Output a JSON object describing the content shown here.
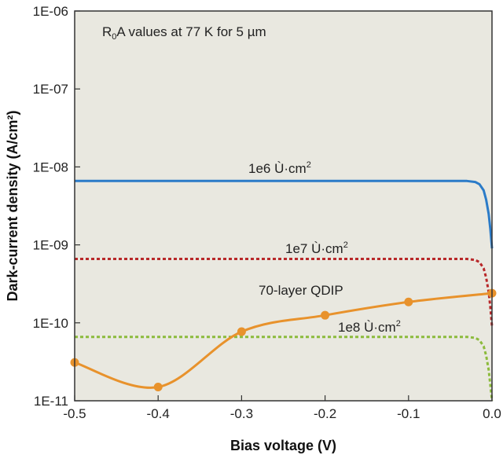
{
  "chart_data": {
    "type": "line",
    "title": "",
    "inset_label": {
      "prefix": "R",
      "subscript": "0",
      "suffix": "A values at 77 K for 5 µm"
    },
    "xlabel": "Bias voltage (V)",
    "ylabel": "Dark-current density (A/cm²)",
    "xlim": [
      -0.5,
      0.0
    ],
    "ylim": [
      1e-11,
      1e-06
    ],
    "yscale": "log",
    "grid": false,
    "x_ticks": [
      -0.5,
      -0.4,
      -0.3,
      -0.2,
      -0.1,
      0.0
    ],
    "x_tick_labels": [
      "-0.5",
      "-0.4",
      "-0.3",
      "-0.2",
      "-0.1",
      "0.0"
    ],
    "y_ticks": [
      1e-06,
      1e-07,
      1e-08,
      1e-09,
      1e-10,
      1e-11
    ],
    "y_tick_labels": [
      "1E-06",
      "1E-07",
      "1E-08",
      "1E-09",
      "1E-10",
      "1E-11"
    ],
    "background_color": "#e9e8e0",
    "series": [
      {
        "name": "1e6 Ù·cm",
        "name_superscript": "2",
        "style": "solid",
        "color": "#2b7bc8",
        "x": [
          -0.5,
          -0.4,
          -0.3,
          -0.2,
          -0.1,
          -0.03,
          -0.02,
          -0.015,
          -0.01,
          -0.007,
          -0.004,
          -0.002,
          0.0
        ],
        "y": [
          6.6e-09,
          6.6e-09,
          6.6e-09,
          6.6e-09,
          6.6e-09,
          6.6e-09,
          6.4e-09,
          6e-09,
          5e-09,
          3.8e-09,
          2.5e-09,
          1.6e-09,
          9e-10
        ]
      },
      {
        "name": "1e7 Ù·cm",
        "name_superscript": "2",
        "style": "dotted",
        "color": "#b8282a",
        "x": [
          -0.5,
          -0.4,
          -0.3,
          -0.2,
          -0.1,
          -0.03,
          -0.02,
          -0.015,
          -0.01,
          -0.007,
          -0.004,
          -0.002,
          0.0
        ],
        "y": [
          6.6e-10,
          6.6e-10,
          6.6e-10,
          6.6e-10,
          6.6e-10,
          6.6e-10,
          6.4e-10,
          6e-10,
          5e-10,
          3.8e-10,
          2.5e-10,
          1.6e-10,
          9e-11
        ]
      },
      {
        "name": "1e8 Ù·cm",
        "name_superscript": "2",
        "style": "dotted",
        "color": "#8cbb3c",
        "x": [
          -0.5,
          -0.4,
          -0.3,
          -0.2,
          -0.1,
          -0.03,
          -0.02,
          -0.015,
          -0.01,
          -0.007,
          -0.004,
          -0.002,
          0.0
        ],
        "y": [
          6.6e-11,
          6.6e-11,
          6.6e-11,
          6.6e-11,
          6.6e-11,
          6.6e-11,
          6.4e-11,
          6e-11,
          5e-11,
          3.8e-11,
          2.5e-11,
          1.6e-11,
          1e-11
        ]
      },
      {
        "name": "70-layer QDIP",
        "style": "solid-markers",
        "color": "#e8922c",
        "x": [
          -0.5,
          -0.4,
          -0.3,
          -0.2,
          -0.1,
          0.0
        ],
        "y": [
          3.1e-11,
          1.5e-11,
          7.7e-11,
          1.25e-10,
          1.85e-10,
          2.4e-10
        ]
      }
    ]
  }
}
